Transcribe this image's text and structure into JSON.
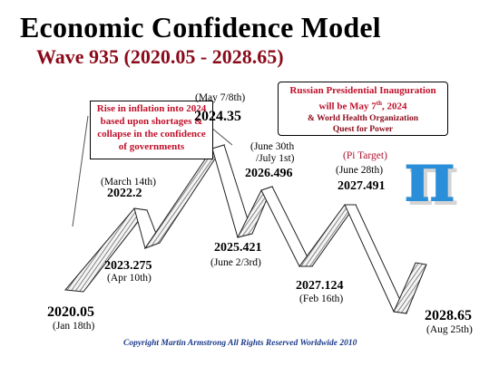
{
  "title": "Economic Confidence Model",
  "subtitle": "Wave 935 (2020.05 - 2028.65)",
  "note_left": {
    "lines": [
      "Rise in inflation into 2024",
      "based upon shortages &",
      "collapse in the confidence",
      "of governments"
    ]
  },
  "note_right": {
    "line1": "Russian Presidential Inauguration",
    "line2_pre": "will be May 7",
    "line2_sup": "th",
    "line2_post": ", 2024",
    "line3": "& World Health Organization",
    "line4": "Quest for Power"
  },
  "points": {
    "p2020": {
      "value": "2020.05",
      "date": "(Jan 18th)"
    },
    "p2022": {
      "value": "2022.2",
      "date": "(March 14th)"
    },
    "p2023": {
      "value": "2023.275",
      "date": "(Apr 10th)"
    },
    "p2024": {
      "value": "2024.35",
      "date": "(May 7/8th)"
    },
    "p2025": {
      "value": "2025.421",
      "date": "(June 2/3rd)"
    },
    "p2026": {
      "value": "2026.496",
      "date1": "(June 30th",
      "date2": "/July 1st)"
    },
    "p2027a": {
      "value": "2027.124",
      "date": "(Feb 16th)"
    },
    "p2027b": {
      "value": "2027.491",
      "date": "(June 28th)",
      "tag": "(Pi Target)"
    },
    "p2028": {
      "value": "2028.65",
      "date": "(Aug 25th)"
    }
  },
  "pi_symbol": "π",
  "copyright": "Copyright Martin Armstrong All Rights Reserved Worldwide 2010",
  "colors": {
    "subtitle": "#8b0a1a",
    "note_text": "#c0102a",
    "pi": "#2a8fd8",
    "copyright": "#1a3a8a"
  }
}
